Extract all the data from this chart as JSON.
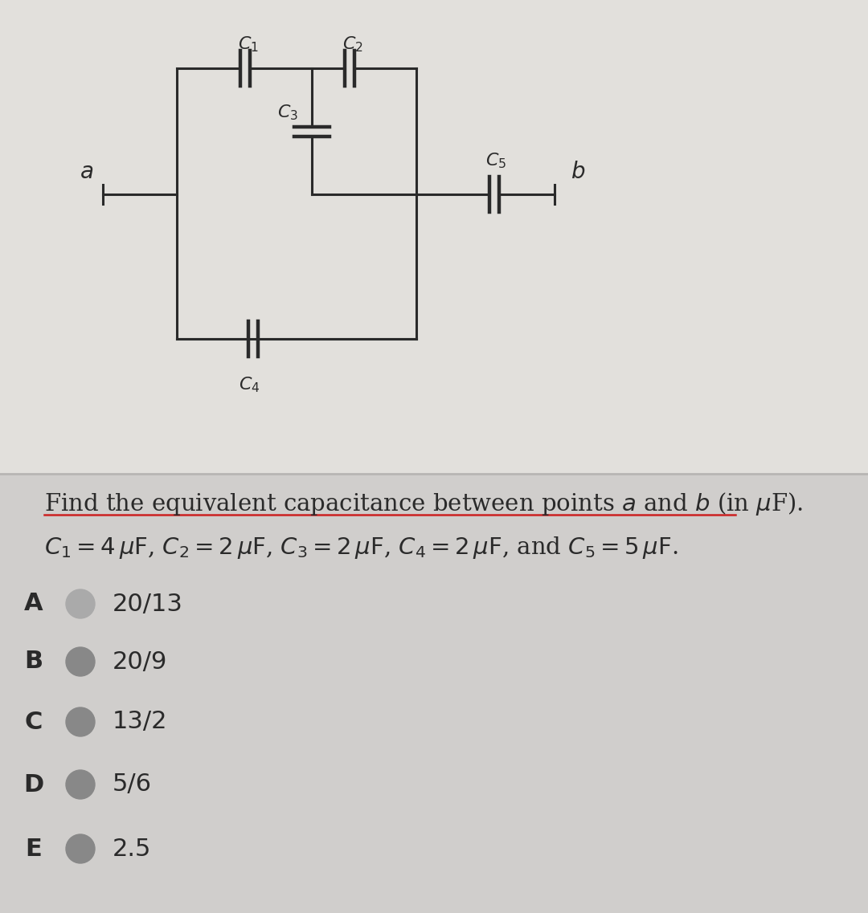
{
  "bg_top": "#e2e0dc",
  "bg_bottom": "#d0cecc",
  "divider_color": "#b8b6b4",
  "text_color": "#1a1a1a",
  "circuit_color": "#2a2a2a",
  "red_underline": "#cc2222",
  "circle_colors": [
    "#aaaaaa",
    "#888888",
    "#888888",
    "#888888",
    "#888888"
  ],
  "choices": [
    "A",
    "B",
    "C",
    "D",
    "E"
  ],
  "answers": [
    "20/13",
    "20/9",
    "13/2",
    "5/6",
    "2.5"
  ],
  "lw": 2.2
}
